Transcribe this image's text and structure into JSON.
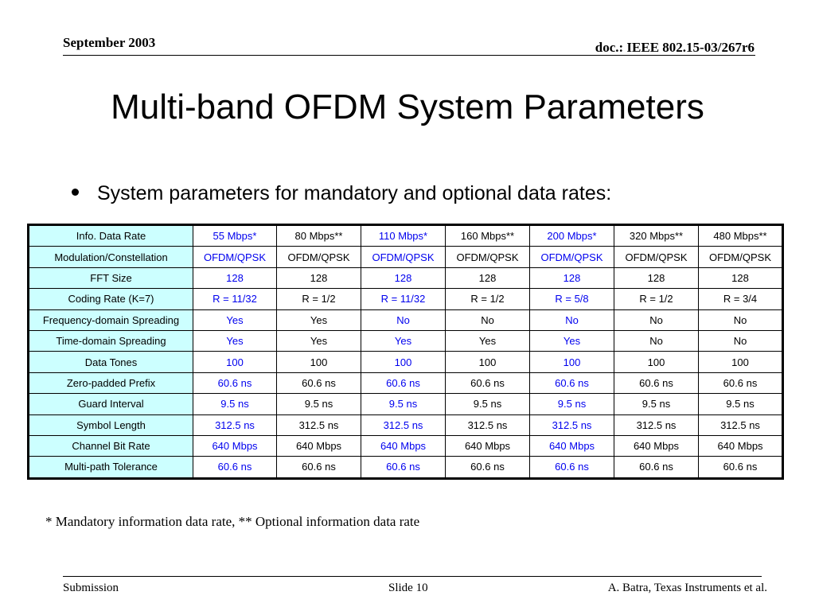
{
  "header": {
    "date": "September 2003",
    "doc_id": "doc.: IEEE 802.15-03/267r6"
  },
  "title": "Multi-band OFDM System Parameters",
  "bullet": "System parameters for mandatory and optional data rates:",
  "table": {
    "mandatory_color": "#0000ee",
    "optional_color": "#000000",
    "label_bg_color": "#ccffff",
    "columns": [
      "55 Mbps*",
      "80 Mbps**",
      "110 Mbps*",
      "160 Mbps**",
      "200 Mbps*",
      "320 Mbps**",
      "480 Mbps**"
    ],
    "mandatory_columns": [
      true,
      false,
      true,
      false,
      true,
      false,
      false
    ],
    "header_label": "Info. Data Rate",
    "rows": [
      {
        "label": "Modulation/Constellation",
        "cells": [
          "OFDM/QPSK",
          "OFDM/QPSK",
          "OFDM/QPSK",
          "OFDM/QPSK",
          "OFDM/QPSK",
          "OFDM/QPSK",
          "OFDM/QPSK"
        ]
      },
      {
        "label": "FFT Size",
        "cells": [
          "128",
          "128",
          "128",
          "128",
          "128",
          "128",
          "128"
        ]
      },
      {
        "label": "Coding Rate (K=7)",
        "cells": [
          "R = 11/32",
          "R = 1/2",
          "R = 11/32",
          "R = 1/2",
          "R = 5/8",
          "R = 1/2",
          "R = 3/4"
        ]
      },
      {
        "label": "Frequency-domain Spreading",
        "cells": [
          "Yes",
          "Yes",
          "No",
          "No",
          "No",
          "No",
          "No"
        ]
      },
      {
        "label": "Time-domain Spreading",
        "cells": [
          "Yes",
          "Yes",
          "Yes",
          "Yes",
          "Yes",
          "No",
          "No"
        ]
      },
      {
        "label": "Data Tones",
        "cells": [
          "100",
          "100",
          "100",
          "100",
          "100",
          "100",
          "100"
        ]
      },
      {
        "label": "Zero-padded Prefix",
        "cells": [
          "60.6 ns",
          "60.6 ns",
          "60.6 ns",
          "60.6 ns",
          "60.6 ns",
          "60.6 ns",
          "60.6 ns"
        ]
      },
      {
        "label": "Guard Interval",
        "cells": [
          "9.5 ns",
          "9.5 ns",
          "9.5 ns",
          "9.5 ns",
          "9.5 ns",
          "9.5 ns",
          "9.5 ns"
        ]
      },
      {
        "label": "Symbol Length",
        "cells": [
          "312.5 ns",
          "312.5 ns",
          "312.5 ns",
          "312.5 ns",
          "312.5 ns",
          "312.5 ns",
          "312.5 ns"
        ]
      },
      {
        "label": "Channel Bit Rate",
        "cells": [
          "640 Mbps",
          "640 Mbps",
          "640 Mbps",
          "640 Mbps",
          "640 Mbps",
          "640 Mbps",
          "640 Mbps"
        ]
      },
      {
        "label": "Multi-path Tolerance",
        "cells": [
          "60.6 ns",
          "60.6 ns",
          "60.6 ns",
          "60.6 ns",
          "60.6 ns",
          "60.6 ns",
          "60.6 ns"
        ]
      }
    ]
  },
  "footnote": "* Mandatory information data rate, ** Optional information data rate",
  "footer": {
    "left": "Submission",
    "center": "Slide 10",
    "right": "A. Batra, Texas Instruments et al."
  }
}
